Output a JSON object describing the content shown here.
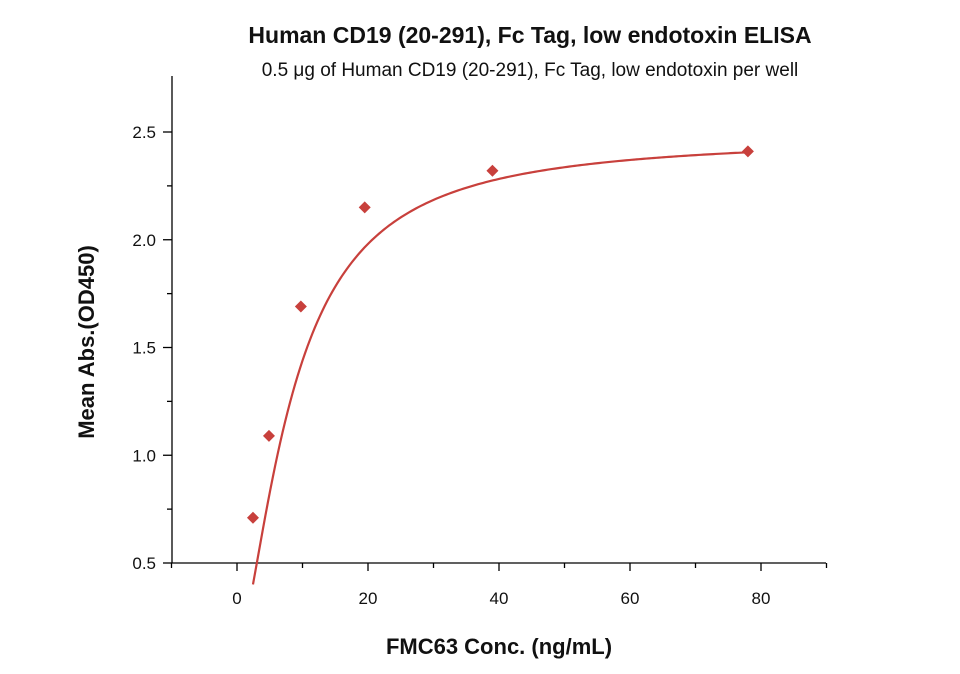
{
  "chart_data": {
    "type": "scatter",
    "title": "Human CD19 (20-291), Fc Tag, low endotoxin ELISA",
    "subtitle": "0.5 μg of Human CD19 (20-291), Fc Tag, low endotoxin per well",
    "xlabel": "FMC63 Conc. (ng/mL)",
    "ylabel": "Mean Abs.(OD450)",
    "xlim": [
      -10,
      90
    ],
    "ylim": [
      0.5,
      2.75
    ],
    "x_ticks": [
      0,
      20,
      40,
      60,
      80
    ],
    "y_ticks": [
      0.5,
      1.0,
      1.5,
      2.0,
      2.5
    ],
    "x_tick_labels": [
      "0",
      "20",
      "40",
      "60",
      "80"
    ],
    "y_tick_labels": [
      "0.5",
      "1.0",
      "1.5",
      "2.0",
      "2.5"
    ],
    "grid": false,
    "series": [
      {
        "color": "#c8403c",
        "marker": "diamond",
        "points": [
          {
            "x": 2.44,
            "y": 0.71
          },
          {
            "x": 4.88,
            "y": 1.09
          },
          {
            "x": 9.75,
            "y": 1.69
          },
          {
            "x": 19.5,
            "y": 2.15
          },
          {
            "x": 39.0,
            "y": 2.32
          },
          {
            "x": 78.0,
            "y": 2.41
          }
        ],
        "fit": {
          "model": "4PL",
          "bottom": 0.1,
          "top": 2.48,
          "ec50": 8.5,
          "hill": 1.55
        }
      }
    ]
  }
}
